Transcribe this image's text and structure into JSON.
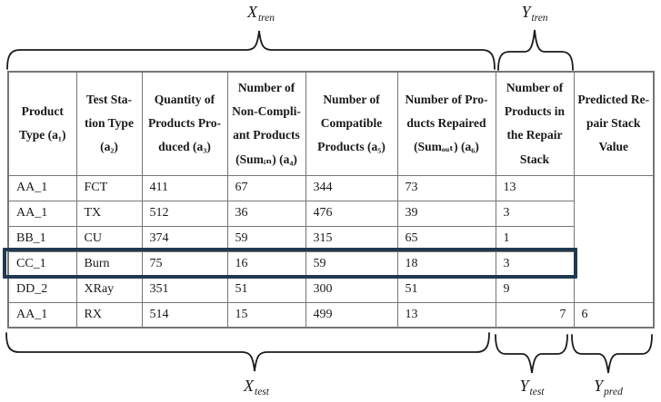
{
  "figure": {
    "labels": {
      "x_train": {
        "main": "X",
        "sub": "tren"
      },
      "y_train": {
        "main": "Y",
        "sub": "tren"
      },
      "x_test": {
        "main": "X",
        "sub": "test"
      },
      "y_test": {
        "main": "Y",
        "sub": "test"
      },
      "y_pred": {
        "main": "Y",
        "sub": "pred"
      }
    },
    "colors": {
      "grid": "#767676",
      "highlight_border": "#213950",
      "brace": "#1a1a1a",
      "text": "#1a1a1a",
      "background": "#ffffff"
    }
  },
  "table": {
    "columns": [
      {
        "key": "product_type",
        "label": "Product\nType (a₁)"
      },
      {
        "key": "test_station_type",
        "label": "Test Sta-\ntion Type\n(a₂)"
      },
      {
        "key": "quantity_produced",
        "label": "Quantity of\nProducts Pro-\nduced (a₃)"
      },
      {
        "key": "non_compliant",
        "label": "Number of\nNon-Compli-\nant Products\n(Sumᵢₙ) (a₄)"
      },
      {
        "key": "compatible",
        "label": "Number of\nCompatible\nProducts (a₅)"
      },
      {
        "key": "repaired",
        "label": "Number of Pro-\nducts Repaired\n(Sumₒᵤₜ) (a₆)"
      },
      {
        "key": "repair_stack",
        "label": "Number of\nProducts in\nthe Repair\nStack"
      },
      {
        "key": "predicted",
        "label": "Predicted Re-\npair Stack\nValue"
      }
    ],
    "rows": [
      {
        "cells": [
          "AA_1",
          "FCT",
          "411",
          "67",
          "344",
          "73",
          "13"
        ],
        "highlighted": false
      },
      {
        "cells": [
          "AA_1",
          "TX",
          "512",
          "36",
          "476",
          "39",
          "3"
        ],
        "highlighted": false
      },
      {
        "cells": [
          "BB_1",
          "CU",
          "374",
          "59",
          "315",
          "65",
          "1"
        ],
        "highlighted": false
      },
      {
        "cells": [
          "CC_1",
          "Burn",
          "75",
          "16",
          "59",
          "18",
          "3"
        ],
        "highlighted": true
      },
      {
        "cells": [
          "DD_2",
          "XRay",
          "351",
          "51",
          "300",
          "51",
          "9"
        ],
        "highlighted": false
      },
      {
        "cells": [
          "AA_1",
          "RX",
          "514",
          "15",
          "499",
          "13",
          "7"
        ],
        "highlighted": false,
        "repair_stack_align": "right",
        "predicted_value": "6"
      }
    ],
    "predicted_empty_rows": 5
  }
}
